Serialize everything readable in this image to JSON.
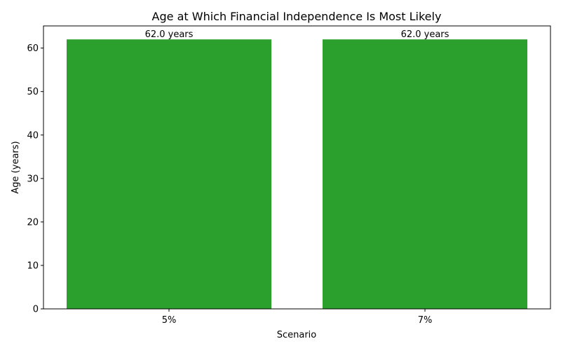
{
  "chart_data": {
    "type": "bar",
    "title": "Age at Which Financial Independence Is Most Likely",
    "xlabel": "Scenario",
    "ylabel": "Age (years)",
    "categories": [
      "5%",
      "7%"
    ],
    "values": [
      62.0,
      62.0
    ],
    "data_labels": [
      "62.0 years",
      "62.0 years"
    ],
    "ylim": [
      0,
      65.1
    ],
    "yticks": [
      0,
      10,
      20,
      30,
      40,
      50,
      60
    ],
    "bar_color": "#2ca02c",
    "grid": false,
    "legend": "none"
  }
}
